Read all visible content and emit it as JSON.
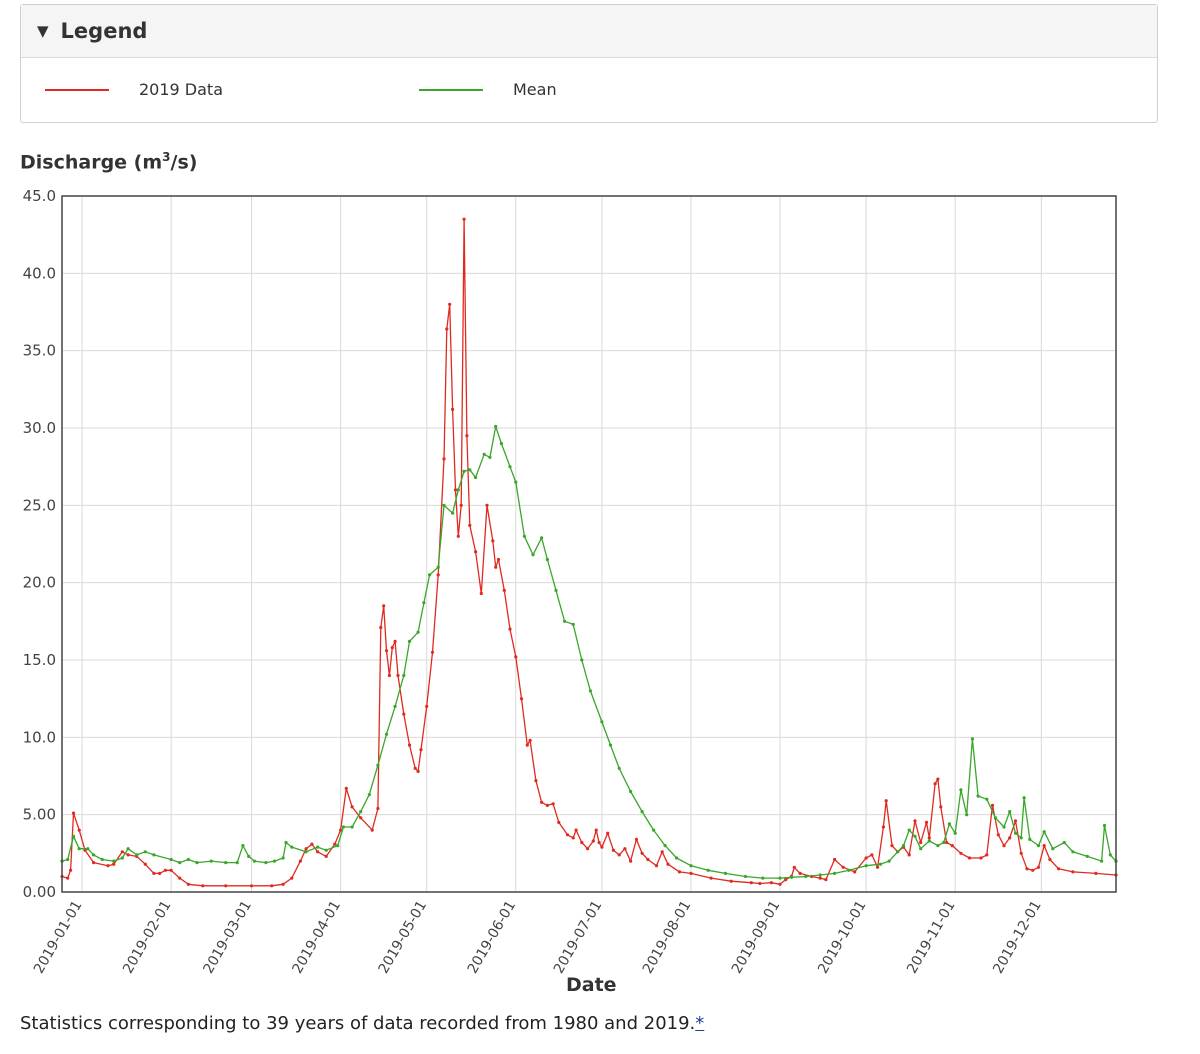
{
  "legend": {
    "title": "Legend",
    "toggle_icon": "triangle-down-icon",
    "entries": [
      {
        "label": "2019 Data",
        "color": "#e02a20"
      },
      {
        "label": "Mean",
        "color": "#3aa62a"
      }
    ]
  },
  "footnote": {
    "text": "Statistics corresponding to 39 years of data recorded from 1980 and 2019.",
    "link": "*"
  },
  "chart_data": {
    "type": "line",
    "xlabel": "Date",
    "ylabel_main": "Discharge (m",
    "ylabel_sup": "3",
    "ylabel_tail": "/s)",
    "ylim": [
      0,
      45
    ],
    "y_ticks": [
      "0.00",
      "5.00",
      "10.0",
      "15.0",
      "20.0",
      "25.0",
      "30.0",
      "35.0",
      "40.0",
      "45.0"
    ],
    "x_range": [
      "2018-12-25",
      "2019-12-27"
    ],
    "x_ticks": [
      "2019-01-01",
      "2019-02-01",
      "2019-03-01",
      "2019-04-01",
      "2019-05-01",
      "2019-06-01",
      "2019-07-01",
      "2019-08-01",
      "2019-09-01",
      "2019-10-01",
      "2019-11-01",
      "2019-12-01"
    ],
    "grid": true,
    "legend_position": "top",
    "series": [
      {
        "name": "2019 Data",
        "color": "#e02a20",
        "points": [
          [
            "2018-12-25",
            1.0
          ],
          [
            "2018-12-27",
            0.9
          ],
          [
            "2018-12-28",
            1.4
          ],
          [
            "2018-12-29",
            5.1
          ],
          [
            "2018-12-31",
            4.0
          ],
          [
            "2019-01-02",
            2.7
          ],
          [
            "2019-01-05",
            1.9
          ],
          [
            "2019-01-10",
            1.7
          ],
          [
            "2019-01-12",
            1.8
          ],
          [
            "2019-01-15",
            2.6
          ],
          [
            "2019-01-17",
            2.4
          ],
          [
            "2019-01-20",
            2.3
          ],
          [
            "2019-01-23",
            1.8
          ],
          [
            "2019-01-26",
            1.2
          ],
          [
            "2019-01-28",
            1.2
          ],
          [
            "2019-01-30",
            1.4
          ],
          [
            "2019-02-01",
            1.4
          ],
          [
            "2019-02-04",
            0.9
          ],
          [
            "2019-02-07",
            0.5
          ],
          [
            "2019-02-12",
            0.4
          ],
          [
            "2019-02-20",
            0.4
          ],
          [
            "2019-03-01",
            0.4
          ],
          [
            "2019-03-08",
            0.4
          ],
          [
            "2019-03-12",
            0.5
          ],
          [
            "2019-03-15",
            0.9
          ],
          [
            "2019-03-18",
            2.0
          ],
          [
            "2019-03-20",
            2.8
          ],
          [
            "2019-03-22",
            3.1
          ],
          [
            "2019-03-24",
            2.6
          ],
          [
            "2019-03-27",
            2.3
          ],
          [
            "2019-03-30",
            3.1
          ],
          [
            "2019-04-01",
            4.0
          ],
          [
            "2019-04-03",
            6.7
          ],
          [
            "2019-04-05",
            5.5
          ],
          [
            "2019-04-08",
            4.8
          ],
          [
            "2019-04-12",
            4.0
          ],
          [
            "2019-04-14",
            5.4
          ],
          [
            "2019-04-15",
            17.1
          ],
          [
            "2019-04-16",
            18.5
          ],
          [
            "2019-04-17",
            15.6
          ],
          [
            "2019-04-18",
            14.0
          ],
          [
            "2019-04-19",
            15.8
          ],
          [
            "2019-04-20",
            16.2
          ],
          [
            "2019-04-21",
            14.0
          ],
          [
            "2019-04-23",
            11.5
          ],
          [
            "2019-04-25",
            9.5
          ],
          [
            "2019-04-27",
            8.0
          ],
          [
            "2019-04-28",
            7.8
          ],
          [
            "2019-04-29",
            9.2
          ],
          [
            "2019-05-01",
            12.0
          ],
          [
            "2019-05-03",
            15.5
          ],
          [
            "2019-05-05",
            20.5
          ],
          [
            "2019-05-07",
            28.0
          ],
          [
            "2019-05-08",
            36.4
          ],
          [
            "2019-05-09",
            38.0
          ],
          [
            "2019-05-10",
            31.2
          ],
          [
            "2019-05-11",
            26.0
          ],
          [
            "2019-05-12",
            23.0
          ],
          [
            "2019-05-13",
            25.0
          ],
          [
            "2019-05-14",
            43.5
          ],
          [
            "2019-05-15",
            29.5
          ],
          [
            "2019-05-16",
            23.7
          ],
          [
            "2019-05-18",
            22.0
          ],
          [
            "2019-05-20",
            19.3
          ],
          [
            "2019-05-22",
            25.0
          ],
          [
            "2019-05-24",
            22.7
          ],
          [
            "2019-05-25",
            21.0
          ],
          [
            "2019-05-26",
            21.5
          ],
          [
            "2019-05-28",
            19.5
          ],
          [
            "2019-05-30",
            17.0
          ],
          [
            "2019-06-01",
            15.2
          ],
          [
            "2019-06-03",
            12.5
          ],
          [
            "2019-06-05",
            9.5
          ],
          [
            "2019-06-06",
            9.8
          ],
          [
            "2019-06-08",
            7.2
          ],
          [
            "2019-06-10",
            5.8
          ],
          [
            "2019-06-12",
            5.6
          ],
          [
            "2019-06-14",
            5.7
          ],
          [
            "2019-06-16",
            4.5
          ],
          [
            "2019-06-19",
            3.7
          ],
          [
            "2019-06-21",
            3.5
          ],
          [
            "2019-06-22",
            4.0
          ],
          [
            "2019-06-24",
            3.2
          ],
          [
            "2019-06-26",
            2.8
          ],
          [
            "2019-06-28",
            3.3
          ],
          [
            "2019-06-29",
            4.0
          ],
          [
            "2019-06-30",
            3.2
          ],
          [
            "2019-07-01",
            2.9
          ],
          [
            "2019-07-03",
            3.8
          ],
          [
            "2019-07-05",
            2.7
          ],
          [
            "2019-07-07",
            2.4
          ],
          [
            "2019-07-09",
            2.8
          ],
          [
            "2019-07-11",
            2.0
          ],
          [
            "2019-07-13",
            3.4
          ],
          [
            "2019-07-15",
            2.5
          ],
          [
            "2019-07-17",
            2.1
          ],
          [
            "2019-07-20",
            1.7
          ],
          [
            "2019-07-22",
            2.6
          ],
          [
            "2019-07-24",
            1.8
          ],
          [
            "2019-07-28",
            1.3
          ],
          [
            "2019-08-01",
            1.2
          ],
          [
            "2019-08-08",
            0.9
          ],
          [
            "2019-08-15",
            0.7
          ],
          [
            "2019-08-22",
            0.6
          ],
          [
            "2019-08-25",
            0.55
          ],
          [
            "2019-08-29",
            0.6
          ],
          [
            "2019-09-01",
            0.5
          ],
          [
            "2019-09-03",
            0.8
          ],
          [
            "2019-09-05",
            1.0
          ],
          [
            "2019-09-06",
            1.6
          ],
          [
            "2019-09-08",
            1.2
          ],
          [
            "2019-09-12",
            1.0
          ],
          [
            "2019-09-15",
            0.9
          ],
          [
            "2019-09-17",
            0.8
          ],
          [
            "2019-09-20",
            2.1
          ],
          [
            "2019-09-23",
            1.6
          ],
          [
            "2019-09-27",
            1.3
          ],
          [
            "2019-10-01",
            2.2
          ],
          [
            "2019-10-03",
            2.4
          ],
          [
            "2019-10-05",
            1.6
          ],
          [
            "2019-10-07",
            4.2
          ],
          [
            "2019-10-08",
            5.9
          ],
          [
            "2019-10-10",
            3.0
          ],
          [
            "2019-10-12",
            2.6
          ],
          [
            "2019-10-14",
            2.9
          ],
          [
            "2019-10-16",
            2.4
          ],
          [
            "2019-10-18",
            4.6
          ],
          [
            "2019-10-20",
            3.2
          ],
          [
            "2019-10-22",
            4.5
          ],
          [
            "2019-10-23",
            3.5
          ],
          [
            "2019-10-25",
            7.0
          ],
          [
            "2019-10-26",
            7.3
          ],
          [
            "2019-10-27",
            5.5
          ],
          [
            "2019-10-29",
            3.2
          ],
          [
            "2019-10-31",
            3.0
          ],
          [
            "2019-11-03",
            2.5
          ],
          [
            "2019-11-06",
            2.2
          ],
          [
            "2019-11-10",
            2.2
          ],
          [
            "2019-11-12",
            2.4
          ],
          [
            "2019-11-14",
            5.6
          ],
          [
            "2019-11-16",
            3.7
          ],
          [
            "2019-11-18",
            3.0
          ],
          [
            "2019-11-20",
            3.5
          ],
          [
            "2019-11-22",
            4.6
          ],
          [
            "2019-11-24",
            2.5
          ],
          [
            "2019-11-26",
            1.5
          ],
          [
            "2019-11-28",
            1.4
          ],
          [
            "2019-11-30",
            1.6
          ],
          [
            "2019-12-02",
            3.0
          ],
          [
            "2019-12-04",
            2.1
          ],
          [
            "2019-12-07",
            1.5
          ],
          [
            "2019-12-12",
            1.3
          ],
          [
            "2019-12-20",
            1.2
          ],
          [
            "2019-12-27",
            1.1
          ]
        ]
      },
      {
        "name": "Mean",
        "color": "#3aa62a",
        "points": [
          [
            "2018-12-25",
            2.0
          ],
          [
            "2018-12-27",
            2.1
          ],
          [
            "2018-12-29",
            3.6
          ],
          [
            "2018-12-31",
            2.8
          ],
          [
            "2019-01-03",
            2.8
          ],
          [
            "2019-01-05",
            2.4
          ],
          [
            "2019-01-08",
            2.1
          ],
          [
            "2019-01-12",
            2.0
          ],
          [
            "2019-01-15",
            2.2
          ],
          [
            "2019-01-17",
            2.8
          ],
          [
            "2019-01-20",
            2.4
          ],
          [
            "2019-01-23",
            2.6
          ],
          [
            "2019-01-26",
            2.4
          ],
          [
            "2019-02-01",
            2.1
          ],
          [
            "2019-02-04",
            1.9
          ],
          [
            "2019-02-07",
            2.1
          ],
          [
            "2019-02-10",
            1.9
          ],
          [
            "2019-02-15",
            2.0
          ],
          [
            "2019-02-20",
            1.9
          ],
          [
            "2019-02-24",
            1.9
          ],
          [
            "2019-02-26",
            3.0
          ],
          [
            "2019-02-28",
            2.3
          ],
          [
            "2019-03-02",
            2.0
          ],
          [
            "2019-03-06",
            1.9
          ],
          [
            "2019-03-09",
            2.0
          ],
          [
            "2019-03-12",
            2.2
          ],
          [
            "2019-03-13",
            3.2
          ],
          [
            "2019-03-15",
            2.9
          ],
          [
            "2019-03-20",
            2.6
          ],
          [
            "2019-03-24",
            2.9
          ],
          [
            "2019-03-27",
            2.7
          ],
          [
            "2019-03-31",
            3.0
          ],
          [
            "2019-04-02",
            4.2
          ],
          [
            "2019-04-05",
            4.2
          ],
          [
            "2019-04-08",
            5.2
          ],
          [
            "2019-04-11",
            6.3
          ],
          [
            "2019-04-14",
            8.2
          ],
          [
            "2019-04-17",
            10.2
          ],
          [
            "2019-04-20",
            12.0
          ],
          [
            "2019-04-23",
            14.0
          ],
          [
            "2019-04-25",
            16.2
          ],
          [
            "2019-04-28",
            16.8
          ],
          [
            "2019-04-30",
            18.7
          ],
          [
            "2019-05-02",
            20.5
          ],
          [
            "2019-05-05",
            21.0
          ],
          [
            "2019-05-07",
            25.0
          ],
          [
            "2019-05-10",
            24.5
          ],
          [
            "2019-05-12",
            26.0
          ],
          [
            "2019-05-14",
            27.2
          ],
          [
            "2019-05-16",
            27.3
          ],
          [
            "2019-05-18",
            26.8
          ],
          [
            "2019-05-21",
            28.3
          ],
          [
            "2019-05-23",
            28.1
          ],
          [
            "2019-05-25",
            30.1
          ],
          [
            "2019-05-27",
            29.0
          ],
          [
            "2019-05-30",
            27.5
          ],
          [
            "2019-06-01",
            26.5
          ],
          [
            "2019-06-04",
            23.0
          ],
          [
            "2019-06-07",
            21.8
          ],
          [
            "2019-06-10",
            22.9
          ],
          [
            "2019-06-12",
            21.5
          ],
          [
            "2019-06-15",
            19.5
          ],
          [
            "2019-06-18",
            17.5
          ],
          [
            "2019-06-21",
            17.3
          ],
          [
            "2019-06-24",
            15.0
          ],
          [
            "2019-06-27",
            13.0
          ],
          [
            "2019-07-01",
            11.0
          ],
          [
            "2019-07-04",
            9.5
          ],
          [
            "2019-07-07",
            8.0
          ],
          [
            "2019-07-11",
            6.5
          ],
          [
            "2019-07-15",
            5.2
          ],
          [
            "2019-07-19",
            4.0
          ],
          [
            "2019-07-23",
            3.0
          ],
          [
            "2019-07-27",
            2.2
          ],
          [
            "2019-08-01",
            1.7
          ],
          [
            "2019-08-07",
            1.4
          ],
          [
            "2019-08-13",
            1.2
          ],
          [
            "2019-08-20",
            1.0
          ],
          [
            "2019-08-26",
            0.9
          ],
          [
            "2019-09-01",
            0.9
          ],
          [
            "2019-09-05",
            0.95
          ],
          [
            "2019-09-10",
            1.0
          ],
          [
            "2019-09-15",
            1.1
          ],
          [
            "2019-09-20",
            1.2
          ],
          [
            "2019-09-25",
            1.4
          ],
          [
            "2019-10-01",
            1.7
          ],
          [
            "2019-10-06",
            1.8
          ],
          [
            "2019-10-09",
            2.0
          ],
          [
            "2019-10-12",
            2.6
          ],
          [
            "2019-10-14",
            3.0
          ],
          [
            "2019-10-16",
            4.0
          ],
          [
            "2019-10-18",
            3.6
          ],
          [
            "2019-10-20",
            2.8
          ],
          [
            "2019-10-23",
            3.3
          ],
          [
            "2019-10-26",
            3.0
          ],
          [
            "2019-10-28",
            3.2
          ],
          [
            "2019-10-30",
            4.4
          ],
          [
            "2019-11-01",
            3.8
          ],
          [
            "2019-11-03",
            6.6
          ],
          [
            "2019-11-05",
            5.0
          ],
          [
            "2019-11-07",
            9.9
          ],
          [
            "2019-11-09",
            6.2
          ],
          [
            "2019-11-12",
            6.0
          ],
          [
            "2019-11-15",
            4.8
          ],
          [
            "2019-11-18",
            4.2
          ],
          [
            "2019-11-20",
            5.2
          ],
          [
            "2019-11-22",
            3.8
          ],
          [
            "2019-11-24",
            3.5
          ],
          [
            "2019-11-25",
            6.1
          ],
          [
            "2019-11-27",
            3.4
          ],
          [
            "2019-11-30",
            3.0
          ],
          [
            "2019-12-02",
            3.9
          ],
          [
            "2019-12-05",
            2.8
          ],
          [
            "2019-12-09",
            3.2
          ],
          [
            "2019-12-12",
            2.6
          ],
          [
            "2019-12-17",
            2.3
          ],
          [
            "2019-12-22",
            2.0
          ],
          [
            "2019-12-23",
            4.3
          ],
          [
            "2019-12-25",
            2.4
          ],
          [
            "2019-12-27",
            2.0
          ]
        ]
      }
    ]
  }
}
